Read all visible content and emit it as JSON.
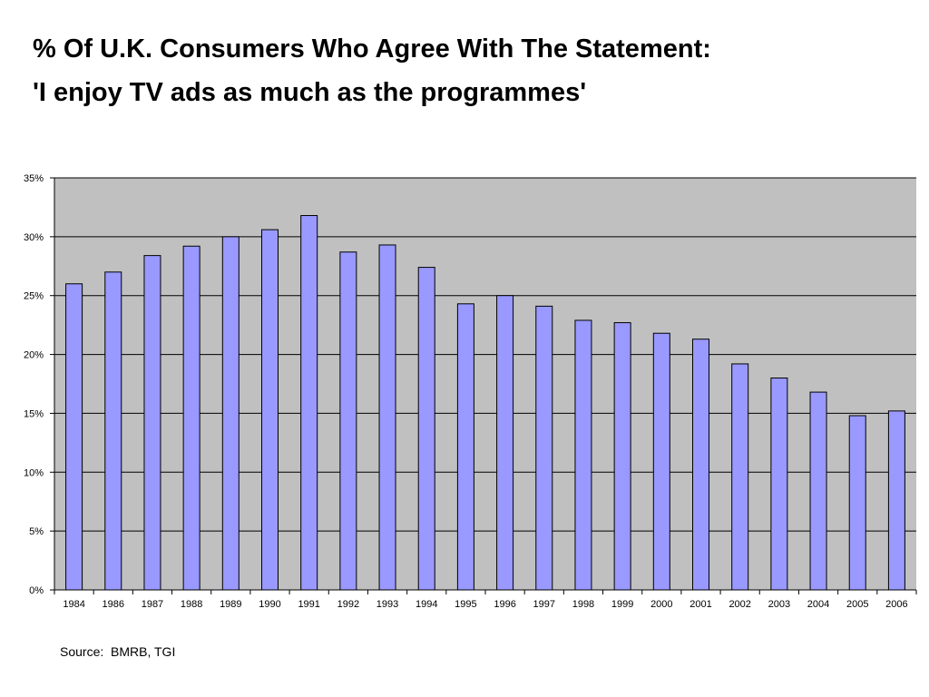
{
  "slide": {
    "title_line1": "% Of U.K. Consumers Who Agree With The Statement:",
    "title_line2": "'I enjoy TV ads as much as the programmes'",
    "source": "Source:  BMRB, TGI"
  },
  "colors": {
    "plot_background": "#c0c0c0",
    "bar_fill": "#9999ff",
    "bar_stroke": "#000000",
    "gridline": "#000000"
  },
  "chart_data": {
    "type": "bar",
    "title": "",
    "xlabel": "",
    "ylabel": "",
    "categories": [
      "1984",
      "1986",
      "1987",
      "1988",
      "1989",
      "1990",
      "1991",
      "1992",
      "1993",
      "1994",
      "1995",
      "1996",
      "1997",
      "1998",
      "1999",
      "2000",
      "2001",
      "2002",
      "2003",
      "2004",
      "2005",
      "2006"
    ],
    "values": [
      26.0,
      27.0,
      28.4,
      29.2,
      30.0,
      30.6,
      31.8,
      28.7,
      29.3,
      27.4,
      24.3,
      25.0,
      24.1,
      22.9,
      22.7,
      21.8,
      21.3,
      19.2,
      18.0,
      16.8,
      14.8,
      15.2
    ],
    "ylim": [
      0,
      35
    ],
    "ytick_values": [
      0,
      5,
      10,
      15,
      20,
      25,
      30,
      35
    ],
    "ytick_labels": [
      "0%",
      "5%",
      "10%",
      "15%",
      "20%",
      "25%",
      "30%",
      "35%"
    ],
    "grid": true,
    "legend": "none"
  }
}
